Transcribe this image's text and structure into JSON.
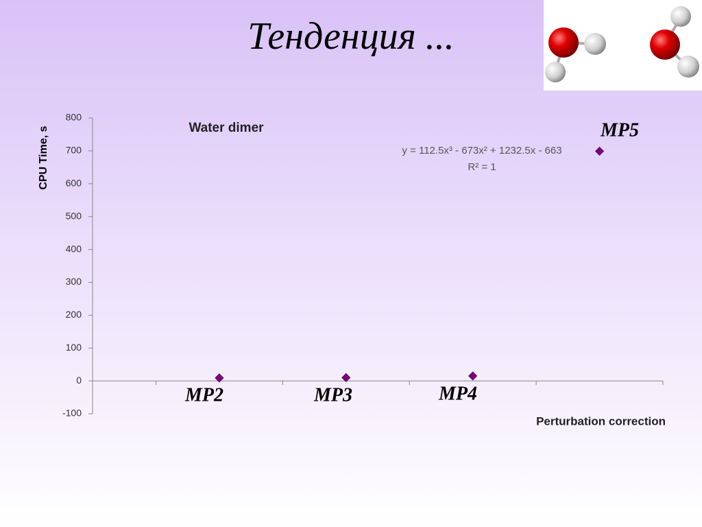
{
  "slide_title": "Тенденция ...",
  "chart_data": {
    "type": "scatter",
    "title": "Water dimer",
    "x_label": "Perturbation correction",
    "y_label": "CPU Time, s",
    "x": [
      1,
      2,
      3,
      4
    ],
    "values": [
      9,
      10,
      15,
      699
    ],
    "color": "#800080",
    "point_labels": [
      "MP2",
      "MP3",
      "MP4",
      "MP5"
    ],
    "trendline_equation": "y = 112.5x³ - 673x² + 1232.5x - 663",
    "r_squared_label": "R² = 1",
    "xlim": [
      0,
      4.5
    ],
    "xticks": [
      0.5,
      1.5,
      2.5,
      3.5,
      4.5
    ],
    "ylim": [
      -100,
      800
    ],
    "yticks": [
      -100,
      0,
      100,
      200,
      300,
      400,
      500,
      600,
      700,
      800
    ]
  }
}
